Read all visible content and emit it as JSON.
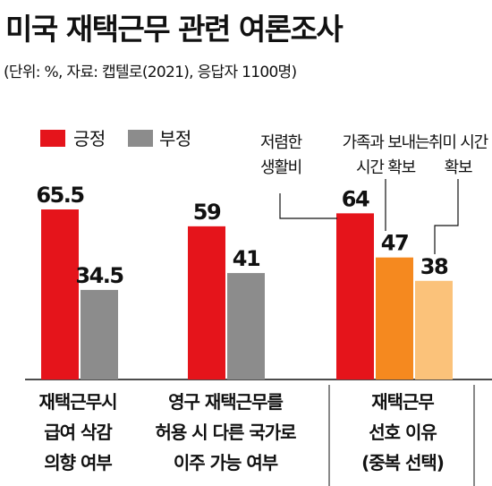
{
  "title": "미국 재택근무 관련 여론조사",
  "subtitle": "(단위: %, 자료: 캡텔로(2021), 응답자 1100명)",
  "legend": [
    {
      "label": "긍정",
      "color": "#e5141b"
    },
    {
      "label": "부정",
      "color": "#8c8c8c"
    }
  ],
  "chart_data": {
    "type": "bar",
    "groups": [
      {
        "label": [
          "재택근무시",
          "급여 삭감",
          "의향 여부"
        ],
        "bars": [
          {
            "series": "긍정",
            "value": 65.5,
            "value_label": "65.5",
            "color": "#e5141b"
          },
          {
            "series": "부정",
            "value": 34.5,
            "value_label": "34.5",
            "color": "#8c8c8c"
          }
        ]
      },
      {
        "label": [
          "영구 재택근무를",
          "허용 시 다른 국가로",
          "이주 가능 여부"
        ],
        "bars": [
          {
            "series": "긍정",
            "value": 59,
            "value_label": "59",
            "color": "#e5141b"
          },
          {
            "series": "부정",
            "value": 41,
            "value_label": "41",
            "color": "#8c8c8c"
          }
        ]
      },
      {
        "label": [
          "재택근무",
          "선호 이유",
          "(중복 선택)"
        ],
        "bars": [
          {
            "series": "저렴한 생활비",
            "value": 64,
            "value_label": "64",
            "color": "#e5141b"
          },
          {
            "series": "가족과 보내는 시간 확보",
            "value": 47,
            "value_label": "47",
            "color": "#f5891f"
          },
          {
            "series": "취미 시간 확보",
            "value": 38,
            "value_label": "38",
            "color": "#fbc27a"
          }
        ]
      }
    ],
    "annotations": [
      {
        "label": [
          "저렴한",
          "생활비"
        ],
        "target": "64"
      },
      {
        "label": [
          "가족과 보내는",
          "시간 확보"
        ],
        "target": "47"
      },
      {
        "label": [
          "취미 시간",
          "확보"
        ],
        "target": "38"
      }
    ],
    "ylim": [
      0,
      100
    ]
  }
}
